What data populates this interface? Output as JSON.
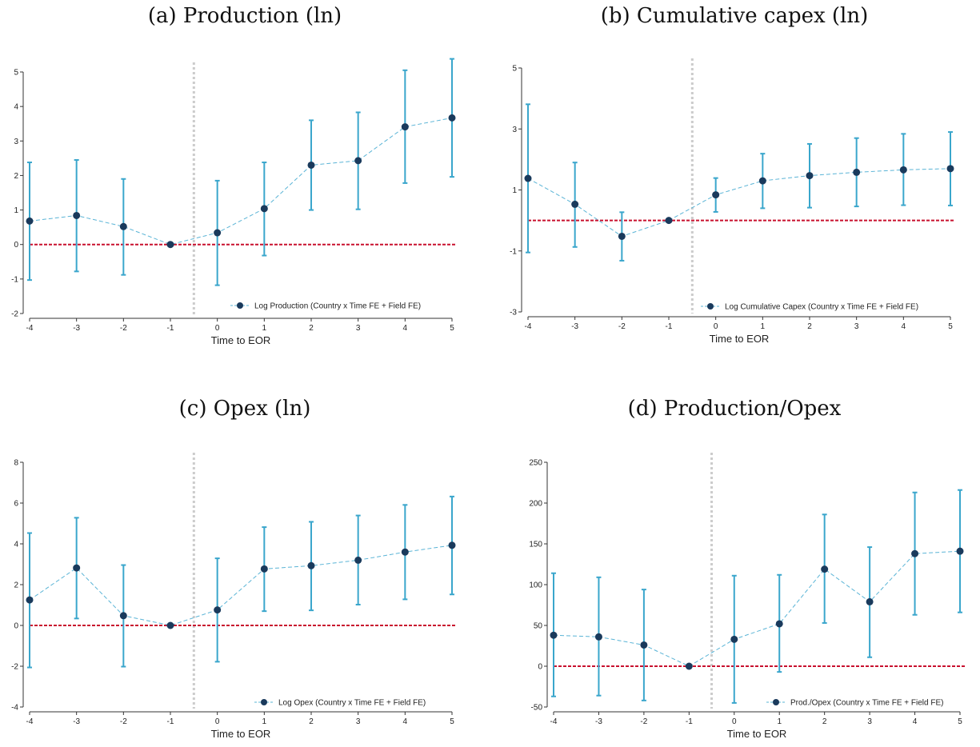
{
  "colors": {
    "point": "#1a3a5c",
    "ci": "#3aa6cc",
    "line": "#5ab4d6",
    "zero_line": "#c8102e",
    "event_line": "#cccccc"
  },
  "chart_data": [
    {
      "type": "scatter",
      "title": "(a) Production (ln)",
      "xlabel": "Time to EOR",
      "ylabel": "",
      "x": [
        -4,
        -3,
        -2,
        -1,
        0,
        1,
        2,
        3,
        4,
        5
      ],
      "xticks": [
        "-4",
        "-3",
        "-2",
        "-1",
        "0",
        "1",
        "2",
        "3",
        "4",
        "5"
      ],
      "ylim": [
        -2,
        5
      ],
      "yticks": [
        "-2",
        "-1",
        "0",
        "1",
        "2",
        "3",
        "4",
        "5"
      ],
      "series": [
        {
          "name": "Log Production (Country x Time FE + Field FE)",
          "values": [
            0.68,
            0.84,
            0.52,
            0.0,
            0.34,
            1.04,
            2.3,
            2.43,
            3.41,
            3.67
          ],
          "ci_low": [
            -1.03,
            -0.78,
            -0.88,
            0.0,
            -1.18,
            -0.32,
            1.0,
            1.02,
            1.78,
            1.96
          ],
          "ci_high": [
            2.38,
            2.45,
            1.9,
            0.0,
            1.85,
            2.38,
            3.6,
            3.83,
            5.05,
            5.38
          ]
        }
      ],
      "event_line_x": -0.5,
      "zero_line_y": 0,
      "legend_position": "bottom-right"
    },
    {
      "type": "scatter",
      "title": "(b) Cumulative capex (ln)",
      "xlabel": "Time to EOR",
      "ylabel": "",
      "x": [
        -4,
        -3,
        -2,
        -1,
        0,
        1,
        2,
        3,
        4,
        5
      ],
      "xticks": [
        "-4",
        "-3",
        "-2",
        "-1",
        "0",
        "1",
        "2",
        "3",
        "4",
        "5"
      ],
      "ylim": [
        -3,
        5
      ],
      "yticks": [
        "-3",
        "-1",
        "1",
        "3",
        "5"
      ],
      "series": [
        {
          "name": "Log Cumulative Capex (Country x Time FE + Field FE)",
          "values": [
            1.38,
            0.53,
            -0.52,
            0.0,
            0.84,
            1.3,
            1.47,
            1.58,
            1.66,
            1.7
          ],
          "ci_low": [
            -1.05,
            -0.87,
            -1.32,
            0.0,
            0.28,
            0.4,
            0.42,
            0.46,
            0.5,
            0.49
          ],
          "ci_high": [
            3.81,
            1.9,
            0.27,
            0.0,
            1.39,
            2.19,
            2.51,
            2.7,
            2.84,
            2.9
          ]
        }
      ],
      "event_line_x": -0.5,
      "zero_line_y": 0,
      "legend_position": "bottom-right"
    },
    {
      "type": "scatter",
      "title": "(c) Opex (ln)",
      "xlabel": "Time to EOR",
      "ylabel": "",
      "x": [
        -4,
        -3,
        -2,
        -1,
        0,
        1,
        2,
        3,
        4,
        5
      ],
      "xticks": [
        "-4",
        "-3",
        "-2",
        "-1",
        "0",
        "1",
        "2",
        "3",
        "4",
        "5"
      ],
      "ylim": [
        -4,
        8
      ],
      "yticks": [
        "-4",
        "-2",
        "0",
        "2",
        "4",
        "6",
        "8"
      ],
      "series": [
        {
          "name": "Log Opex (Country x Time FE + Field FE)",
          "values": [
            1.25,
            2.82,
            0.48,
            0.0,
            0.76,
            2.77,
            2.93,
            3.2,
            3.6,
            3.93
          ],
          "ci_low": [
            -2.06,
            0.34,
            -2.02,
            0.0,
            -1.78,
            0.7,
            0.74,
            1.02,
            1.28,
            1.52
          ],
          "ci_high": [
            4.53,
            5.28,
            2.96,
            0.0,
            3.29,
            4.82,
            5.08,
            5.39,
            5.91,
            6.32
          ]
        }
      ],
      "event_line_x": -0.5,
      "zero_line_y": 0,
      "legend_position": "bottom-right"
    },
    {
      "type": "scatter",
      "title": "(d) Production/Opex",
      "xlabel": "Time to EOR",
      "ylabel": "",
      "x": [
        -4,
        -3,
        -2,
        -1,
        0,
        1,
        2,
        3,
        4,
        5
      ],
      "xticks": [
        "-4",
        "-3",
        "-2",
        "-1",
        "0",
        "1",
        "2",
        "3",
        "4",
        "5"
      ],
      "ylim": [
        -50,
        250
      ],
      "yticks": [
        "-50",
        "0",
        "50",
        "100",
        "150",
        "200",
        "250"
      ],
      "series": [
        {
          "name": "Prod./Opex (Country x Time FE + Field FE)",
          "values": [
            38,
            36,
            26,
            0,
            33,
            52,
            119,
            79,
            138,
            141
          ],
          "ci_low": [
            -37,
            -36,
            -42,
            0,
            -45,
            -7,
            53,
            11,
            63,
            66
          ],
          "ci_high": [
            114,
            109,
            94,
            0,
            111,
            112,
            186,
            146,
            213,
            216
          ]
        }
      ],
      "event_line_x": -0.5,
      "zero_line_y": 0,
      "legend_position": "bottom-right"
    }
  ]
}
